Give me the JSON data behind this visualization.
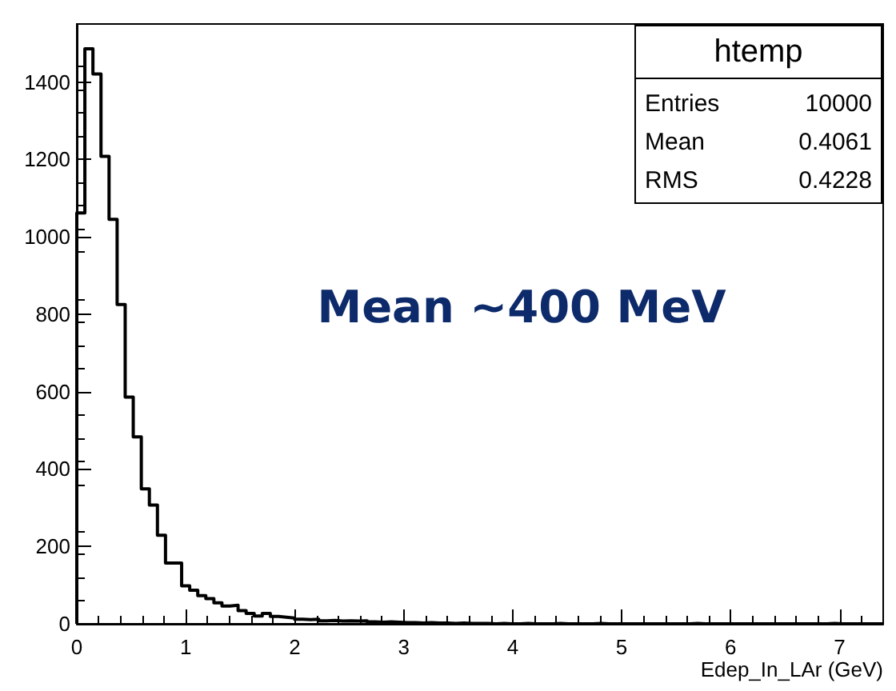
{
  "chart_data": {
    "type": "histogram",
    "xlabel": "Edep_In_LAr (GeV)",
    "bins": [
      0,
      0.074,
      0.148,
      0.222,
      0.296,
      0.37,
      0.444,
      0.518,
      0.592,
      0.666,
      0.74,
      0.814,
      0.888,
      0.962,
      1.036,
      1.11,
      1.184,
      1.258,
      1.332,
      1.406,
      1.48,
      1.554,
      1.628,
      1.702,
      1.776,
      1.85,
      1.924,
      1.998,
      2.072,
      2.146,
      2.22,
      2.294,
      2.368,
      2.442,
      2.516,
      2.59,
      2.664,
      2.738,
      2.812,
      2.886,
      2.96,
      3.034,
      3.108,
      3.182,
      3.256,
      3.33,
      3.404,
      3.478,
      3.552,
      3.626,
      3.7,
      3.774,
      3.848,
      3.922,
      3.996,
      4.07,
      4.144,
      4.218,
      4.292,
      4.366,
      4.44,
      4.514,
      4.588,
      4.662,
      4.736,
      4.81,
      4.884,
      4.958,
      5.032,
      5.106,
      5.18,
      5.254,
      5.328,
      5.402,
      5.476,
      5.55,
      5.624,
      5.698,
      5.772,
      5.846,
      5.92,
      5.994,
      6.068,
      6.142,
      6.216,
      6.29,
      6.364,
      6.438,
      6.512,
      6.586,
      6.66,
      6.734,
      6.808,
      6.882,
      6.956,
      7.03,
      7.104,
      7.178,
      7.252,
      7.326,
      7.4
    ],
    "values": [
      1062,
      1486,
      1421,
      1208,
      1045,
      825,
      586,
      483,
      349,
      307,
      229,
      157,
      157,
      98,
      87,
      73,
      65,
      54,
      46,
      48,
      34,
      27,
      20,
      27,
      19,
      17,
      15,
      12,
      11,
      12,
      8,
      9,
      7,
      8,
      7,
      8,
      5,
      4,
      5,
      4,
      3,
      3,
      2,
      3,
      2,
      2,
      1,
      2,
      1,
      1,
      1,
      0,
      1,
      0,
      0,
      1,
      0,
      0,
      0,
      1,
      0,
      0,
      0,
      0,
      1,
      0,
      0,
      0,
      0,
      0,
      0,
      0,
      0,
      0,
      0,
      0,
      1,
      0,
      0,
      0,
      0,
      0,
      0,
      0,
      0,
      0,
      0,
      0,
      0,
      0,
      0,
      0,
      0,
      1,
      0,
      0,
      0,
      0,
      0,
      0
    ],
    "color": "#000000",
    "xlim": [
      0,
      7.4
    ],
    "xticks": [
      0,
      1,
      2,
      3,
      4,
      5,
      6,
      7
    ],
    "ylim": [
      0,
      1550
    ],
    "yticks": [
      0,
      200,
      400,
      600,
      800,
      1000,
      1200,
      1400
    ],
    "grid": false,
    "annotations": [
      "htemp",
      "Entries",
      "10000",
      "Mean",
      "0.4061",
      "RMS",
      "0.4228",
      "Mean ~400 MeV"
    ]
  }
}
